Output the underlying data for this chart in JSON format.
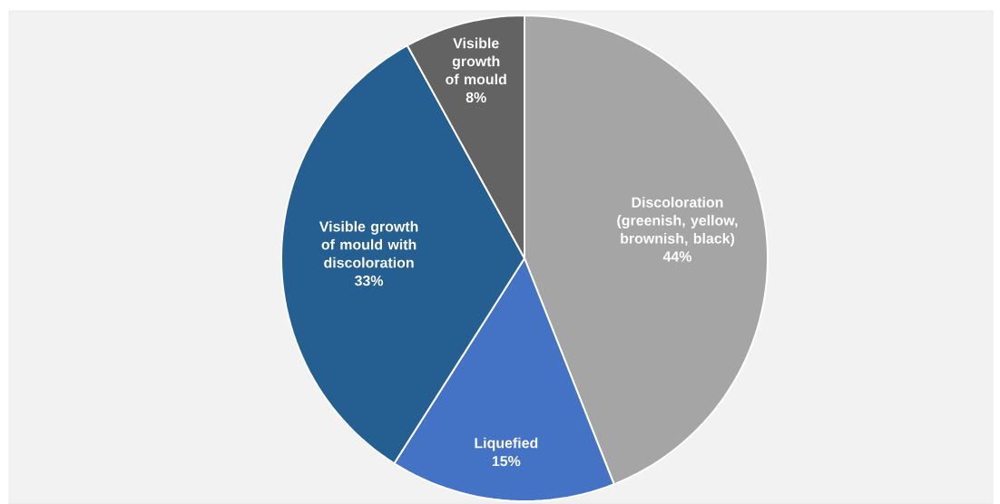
{
  "chart_data": {
    "type": "pie",
    "categories": [
      "Discoloration (greenish, yellow, brownish, black)",
      "Liquefied",
      "Visible growth of mould with discoloration",
      "Visible growth of mould"
    ],
    "values": [
      44,
      15,
      33,
      8
    ],
    "value_labels": [
      "44%",
      "15%",
      "33%",
      "8%"
    ],
    "colors": [
      "#a5a5a5",
      "#4472c4",
      "#255e91",
      "#636363"
    ]
  }
}
